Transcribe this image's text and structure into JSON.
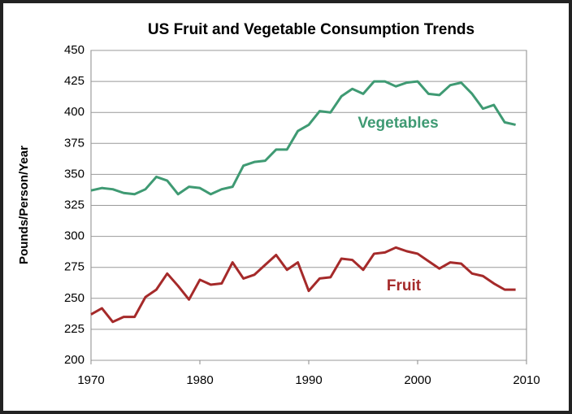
{
  "chart_data": {
    "type": "line",
    "title": "US Fruit and Vegetable Consumption Trends",
    "y_label": "Pounds/Person/Year",
    "x": [
      1970,
      1971,
      1972,
      1973,
      1974,
      1975,
      1976,
      1977,
      1978,
      1979,
      1980,
      1981,
      1982,
      1983,
      1984,
      1985,
      1986,
      1987,
      1988,
      1989,
      1990,
      1991,
      1992,
      1993,
      1994,
      1995,
      1996,
      1997,
      1998,
      1999,
      2000,
      2001,
      2002,
      2003,
      2004,
      2005,
      2006,
      2007,
      2008,
      2009
    ],
    "series": [
      {
        "name": "Vegetables",
        "color": "#3f9a73",
        "values": [
          337,
          339,
          338,
          335,
          334,
          338,
          348,
          345,
          334,
          340,
          339,
          334,
          338,
          340,
          357,
          360,
          361,
          370,
          370,
          385,
          390,
          401,
          400,
          413,
          419,
          415,
          425,
          425,
          421,
          424,
          425,
          415,
          414,
          422,
          424,
          415,
          403,
          406,
          392,
          390
        ]
      },
      {
        "name": "Fruit",
        "color": "#a52a2a",
        "values": [
          237,
          242,
          231,
          235,
          235,
          251,
          257,
          270,
          260,
          249,
          265,
          261,
          262,
          279,
          266,
          269,
          277,
          285,
          273,
          279,
          256,
          266,
          267,
          282,
          281,
          273,
          286,
          287,
          291,
          288,
          286,
          280,
          274,
          279,
          278,
          270,
          268,
          262,
          257,
          257
        ]
      }
    ],
    "xlim": [
      1970,
      2010
    ],
    "xticks": [
      1970,
      1980,
      1990,
      2000,
      2010
    ],
    "ylim": [
      200,
      450
    ],
    "yticks": [
      200,
      225,
      250,
      275,
      300,
      325,
      350,
      375,
      400,
      425,
      450
    ],
    "grid": true
  }
}
